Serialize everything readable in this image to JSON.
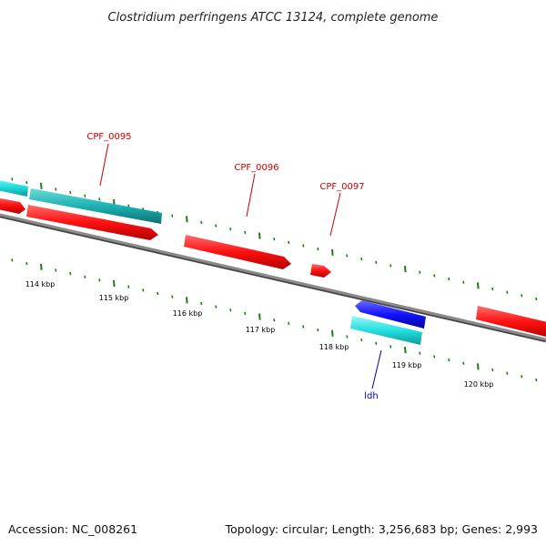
{
  "title": "Clostridium perfringens ATCC 13124, complete genome",
  "footer": {
    "accession": "Accession: NC_008261",
    "summary": "Topology: circular; Length: 3,256,683 bp; Genes: 2,993"
  },
  "colors": {
    "backbone": "#808080",
    "tick": "#1f7a1f",
    "cds_red": "#ff1a1a",
    "gene_cyan": "#2ee6e6",
    "gene_teal": "#1fb8b8",
    "cds_blue": "#1a1aff",
    "label_red": "#cc0000",
    "label_blue": "#0000aa"
  },
  "ticks": [
    "114 kbp",
    "115 kbp",
    "116 kbp",
    "117 kbp",
    "118 kbp",
    "119 kbp",
    "120 kbp"
  ],
  "gene_labels": [
    {
      "id": "cpf-0095",
      "text": "CPF_0095",
      "color": "#cc0000"
    },
    {
      "id": "cpf-0096",
      "text": "CPF_0096",
      "color": "#cc0000"
    },
    {
      "id": "cpf-0097",
      "text": "CPF_0097",
      "color": "#cc0000"
    },
    {
      "id": "ldh",
      "text": "ldh",
      "color": "#0000aa"
    }
  ]
}
